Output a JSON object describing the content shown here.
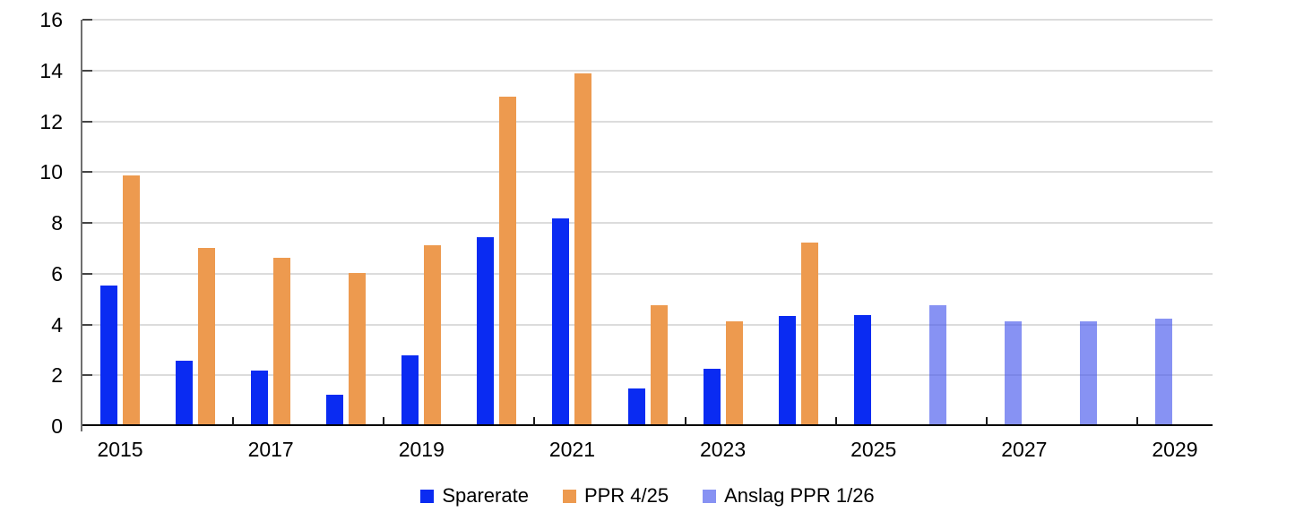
{
  "chart_data": {
    "type": "bar",
    "categories": [
      "2015",
      "2016",
      "2017",
      "2018",
      "2019",
      "2020",
      "2021",
      "2022",
      "2023",
      "2024",
      "2025",
      "2026",
      "2027",
      "2028",
      "2029"
    ],
    "series": [
      {
        "name": "Sparerate",
        "color": "#0a2bf2",
        "slot": 0,
        "values": [
          5.45,
          2.5,
          2.1,
          1.15,
          2.7,
          7.35,
          8.1,
          1.4,
          2.2,
          4.25,
          4.3,
          null,
          null,
          null,
          null
        ]
      },
      {
        "name": "PPR 4/25",
        "color": "#ed9a4f",
        "slot": 1,
        "values": [
          9.8,
          6.95,
          6.55,
          5.95,
          7.05,
          12.9,
          13.8,
          4.7,
          4.05,
          7.15,
          null,
          null,
          null,
          null,
          null
        ]
      },
      {
        "name": "Anslag PPR 1/26",
        "color": "rgba(70,87,237,0.65)",
        "slot": 0,
        "values": [
          null,
          null,
          null,
          null,
          null,
          null,
          null,
          null,
          null,
          null,
          null,
          4.7,
          4.05,
          4.05,
          4.15
        ]
      }
    ],
    "ylim": [
      0,
      16
    ],
    "yticks": [
      0,
      2,
      4,
      6,
      8,
      10,
      12,
      14,
      16
    ],
    "x_label_every": 2,
    "x_boundary_tick_every": 2,
    "grid": "horizontal",
    "legend_position": "bottom"
  },
  "colors": {
    "background": "#ffffff",
    "gridline": "#dcdcdc",
    "y_axis": "#6f6f6f",
    "x_axis": "#000000",
    "text": "#000000"
  }
}
